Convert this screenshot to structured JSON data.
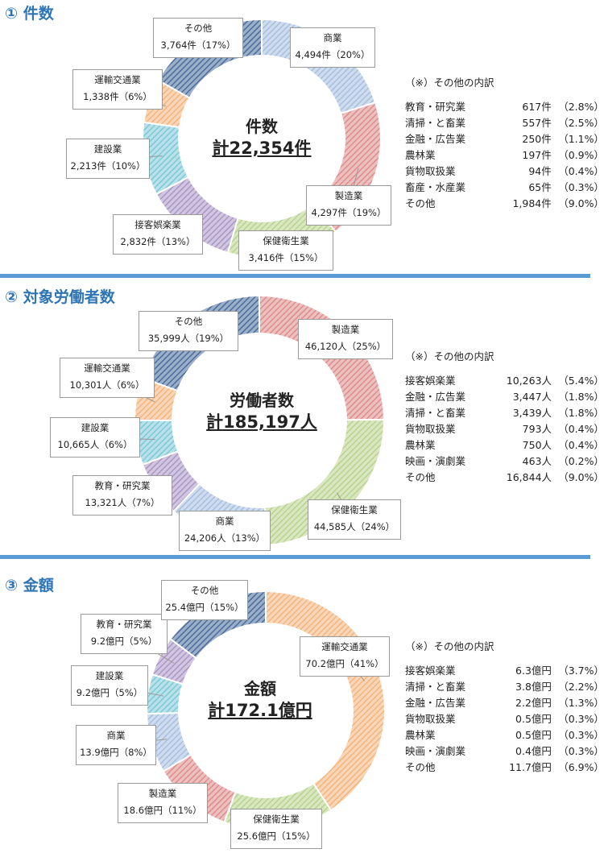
{
  "colors": {
    "title": "#2E75B6",
    "divider": "#5B9BD5",
    "categories": {
      "商業": "#A7BFDF",
      "製造業": "#DD8C8C",
      "保健衛生業": "#B9D38E",
      "接客娯楽業": "#AA96C6",
      "建設業": "#7DC8D6",
      "運輸交通業": "#F3B47E",
      "その他": "#4A6D9C",
      "教育・研究業": "#AA96C6"
    }
  },
  "sections": [
    {
      "title": "① 件数",
      "center_label": "件数",
      "center_total": "計22,354件",
      "breakdown_title": "（※）その他の内訳",
      "breakdown": [
        {
          "name": "教育・研究業",
          "value": "617件",
          "pct": "（2.8%）"
        },
        {
          "name": "清掃・と畜業",
          "value": "557件",
          "pct": "（2.5%）"
        },
        {
          "name": "金融・広告業",
          "value": "250件",
          "pct": "（1.1%）"
        },
        {
          "name": "農林業",
          "value": "197件",
          "pct": "（0.9%）"
        },
        {
          "name": "貨物取扱業",
          "value": "94件",
          "pct": "（0.4%）"
        },
        {
          "name": "畜産・水産業",
          "value": "65件",
          "pct": "（0.3%）"
        },
        {
          "name": "その他",
          "value": "1,984件",
          "pct": "（9.0%）"
        }
      ]
    },
    {
      "title": "② 対象労働者数",
      "center_label": "労働者数",
      "center_total": "計185,197人",
      "breakdown_title": "（※）その他の内訳",
      "breakdown": [
        {
          "name": "接客娯楽業",
          "value": "10,263人",
          "pct": "（5.4%）"
        },
        {
          "name": "金融・広告業",
          "value": "3,447人",
          "pct": "（1.8%）"
        },
        {
          "name": "清掃・と畜業",
          "value": "3,439人",
          "pct": "（1.8%）"
        },
        {
          "name": "貨物取扱業",
          "value": "793人",
          "pct": "（0.4%）"
        },
        {
          "name": "農林業",
          "value": "750人",
          "pct": "（0.4%）"
        },
        {
          "name": "映画・演劇業",
          "value": "463人",
          "pct": "（0.2%）"
        },
        {
          "name": "その他",
          "value": "16,844人",
          "pct": "（9.0%）"
        }
      ]
    },
    {
      "title": "③ 金額",
      "center_label": "金額",
      "center_total": "計172.1億円",
      "breakdown_title": "（※）その他の内訳",
      "breakdown": [
        {
          "name": "接客娯楽業",
          "value": "6.3億円",
          "pct": "（3.7%）"
        },
        {
          "name": "清掃・と畜業",
          "value": "3.8億円",
          "pct": "（2.2%）"
        },
        {
          "name": "金融・広告業",
          "value": "2.2億円",
          "pct": "（1.3%）"
        },
        {
          "name": "貨物取扱業",
          "value": "0.5億円",
          "pct": "（0.3%）"
        },
        {
          "name": "農林業",
          "value": "0.5億円",
          "pct": "（0.3%）"
        },
        {
          "name": "映画・演劇業",
          "value": "0.4億円",
          "pct": "（0.3%）"
        },
        {
          "name": "その他",
          "value": "11.7億円",
          "pct": "（6.9%）"
        }
      ]
    }
  ],
  "chart_data": [
    {
      "type": "pie",
      "title": "件数",
      "series": [
        {
          "values": [
            4494,
            4297,
            3416,
            2832,
            2213,
            1338,
            3764
          ],
          "labels": [
            "商業",
            "製造業",
            "保健衛生業",
            "接客娯楽業",
            "建設業",
            "運輸交通業",
            "その他"
          ],
          "label_text": [
            "4,494件（20%）",
            "4,297件（19%）",
            "3,416件（15%）",
            "2,832件（13%）",
            "2,213件（10%）",
            "1,338件（6%）",
            "3,764件（17%）"
          ]
        }
      ]
    },
    {
      "type": "pie",
      "title": "労働者数",
      "series": [
        {
          "values": [
            46120,
            44585,
            24206,
            13321,
            10665,
            10301,
            35999
          ],
          "labels": [
            "製造業",
            "保健衛生業",
            "商業",
            "教育・研究業",
            "建設業",
            "運輸交通業",
            "その他"
          ],
          "label_text": [
            "46,120人（25%）",
            "44,585人（24%）",
            "24,206人（13%）",
            "13,321人（7%）",
            "10,665人（6%）",
            "10,301人（6%）",
            "35,999人（19%）"
          ]
        }
      ]
    },
    {
      "type": "pie",
      "title": "金額",
      "series": [
        {
          "values": [
            70.2,
            25.6,
            18.6,
            13.9,
            9.2,
            9.2,
            25.4
          ],
          "labels": [
            "運輸交通業",
            "保健衛生業",
            "製造業",
            "商業",
            "建設業",
            "教育・研究業",
            "その他"
          ],
          "label_text": [
            "70.2億円（41%）",
            "25.6億円（15%）",
            "18.6億円（11%）",
            "13.9億円（8%）",
            "9.2億円（5%）",
            "9.2億円（5%）",
            "25.4億円（15%）"
          ]
        }
      ]
    }
  ]
}
